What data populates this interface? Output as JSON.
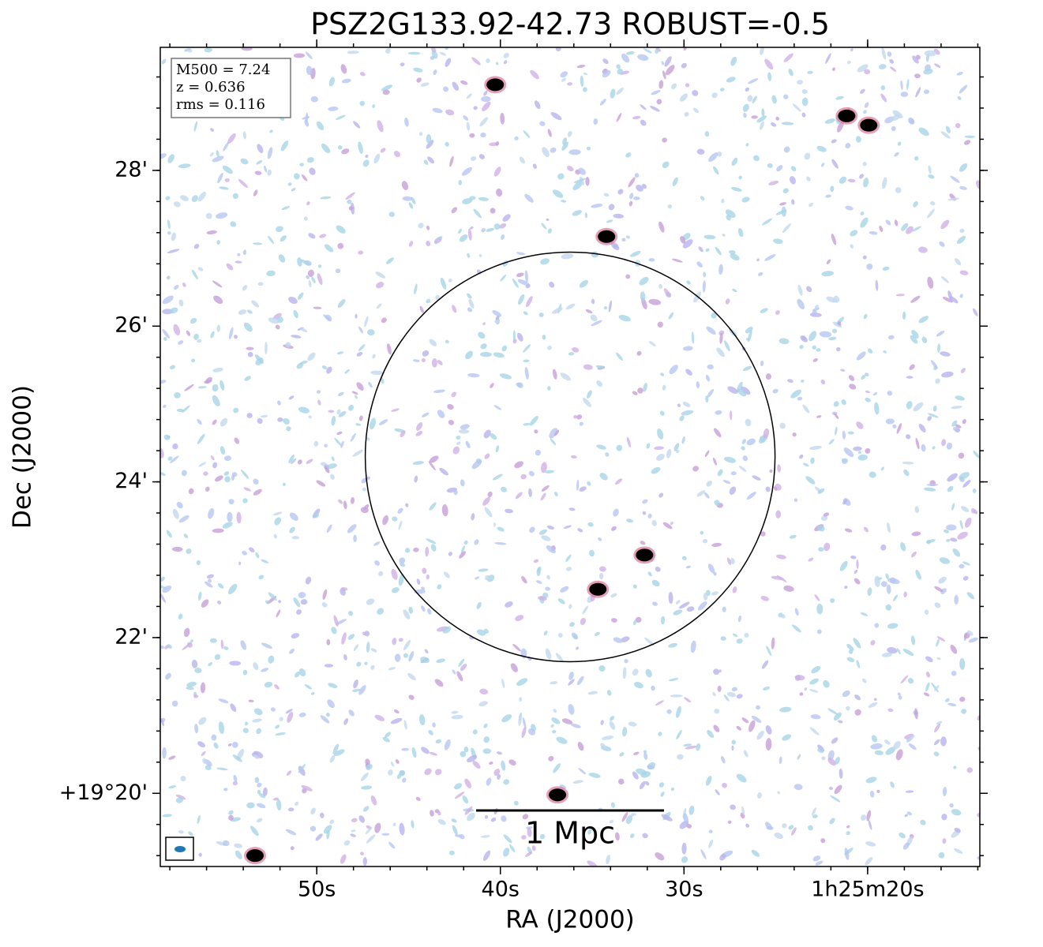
{
  "chart_data": {
    "type": "image",
    "title": "PSZ2G133.92-42.73 ROBUST=-0.5",
    "x_label": "RA (J2000)",
    "y_label": "Dec (J2000)",
    "xlim": [
      58.52,
      13.89
    ],
    "ylim": [
      19.06,
      29.58
    ],
    "xticks": [
      {
        "value": 50,
        "label": "50s"
      },
      {
        "value": 40,
        "label": "40s"
      },
      {
        "value": 30,
        "label": "30s"
      },
      {
        "value": 20,
        "label": "1h25m20s"
      }
    ],
    "yticks": [
      {
        "value": 28,
        "label": "28'"
      },
      {
        "value": 26,
        "label": "26'"
      },
      {
        "value": 24,
        "label": "24'"
      },
      {
        "value": 22,
        "label": "22'"
      },
      {
        "value": 20,
        "label": "+19°20'"
      }
    ],
    "info": [
      "M500 = 7.24",
      "z = 0.636",
      "rms = 0.116"
    ],
    "scale_bar_label": "1 Mpc",
    "sources": {
      "x": [
        34.22,
        32.15,
        34.69,
        21.14,
        19.94,
        40.28,
        36.89,
        53.36
      ],
      "y": [
        27.15,
        23.06,
        22.62,
        28.7,
        28.58,
        29.1,
        19.98,
        19.2
      ]
    },
    "circle": {
      "x": 36.2,
      "y": 24.32,
      "r": 2.63
    }
  }
}
